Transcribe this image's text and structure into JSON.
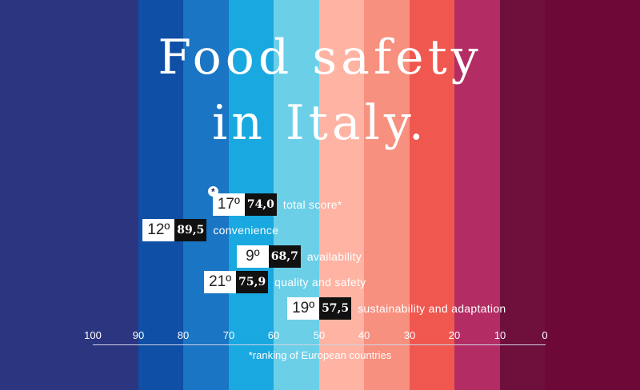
{
  "title_lines": [
    "Food safety",
    "in Italy."
  ],
  "footnote": "*ranking of European countries",
  "total_star": "*",
  "bands": [
    "#2c3680",
    "#0f4fa6",
    "#1a75c4",
    "#19a8df",
    "#6ccfe8",
    "#ffb3a3",
    "#f7907f",
    "#f0574f",
    "#b32d64",
    "#6e0f3c",
    "#6e0836"
  ],
  "chart_data": {
    "type": "bar",
    "xlim": [
      100,
      0
    ],
    "x_ticks": [
      "100",
      "90",
      "80",
      "70",
      "60",
      "50",
      "40",
      "30",
      "20",
      "10",
      "0"
    ],
    "categories": [
      "total score*",
      "convenience",
      "availability",
      "quality and safety",
      "sustainability and adaptation"
    ],
    "ranks": [
      "17º",
      "12º",
      "9º",
      "21º",
      "19º"
    ],
    "score_labels": [
      "74,0",
      "89,5",
      "68,7",
      "75,9",
      "57,5"
    ],
    "values": [
      74.0,
      89.5,
      68.7,
      75.9,
      57.5
    ]
  }
}
